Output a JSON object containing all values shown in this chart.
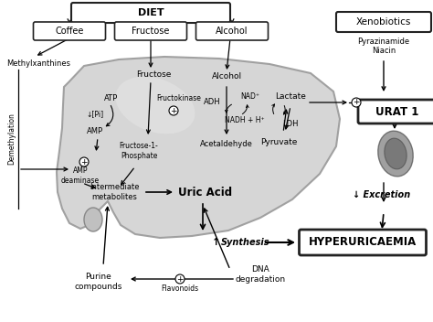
{
  "bg_color": "#ffffff",
  "title": "DIET",
  "coffee": "Coffee",
  "fructose_box": "Fructose",
  "alcohol_box": "Alcohol",
  "xenobiotics": "Xenobiotics",
  "pyrazinamide": "Pyrazinamide",
  "niacin": "Niacin",
  "urat1": "URAT 1",
  "excretion": "↓ Excretion",
  "hyperuricaemia": "HYPERURICAEMIA",
  "methylxanthines": "Methylxanthines",
  "demethylation": "Demethylation",
  "fructose": "Fructose",
  "atp": "ATP",
  "amp": "AMP",
  "pi": "↓[Pi]",
  "fructokinase": "Fructokinase",
  "amp_deaminase": "AMP\ndeaminase",
  "fructose1p": "Fructose-1-\nPhosphate",
  "alcohol": "Alcohol",
  "adh": "ADH",
  "nad": "NAD⁺",
  "nadh": "NADH + H⁺",
  "acetaldehyde": "Acetaldehyde",
  "lactate": "Lactate",
  "ldh": "LDH",
  "pyruvate": "Pyruvate",
  "intermediate": "Intermediate\nmetabolites",
  "uric_acid": "Uric Acid",
  "synthesis": " Synthesis",
  "dna_deg": "DNA\ndegradation",
  "purine": "Purine\ncompounds",
  "flavonoids": "Flavonoids"
}
